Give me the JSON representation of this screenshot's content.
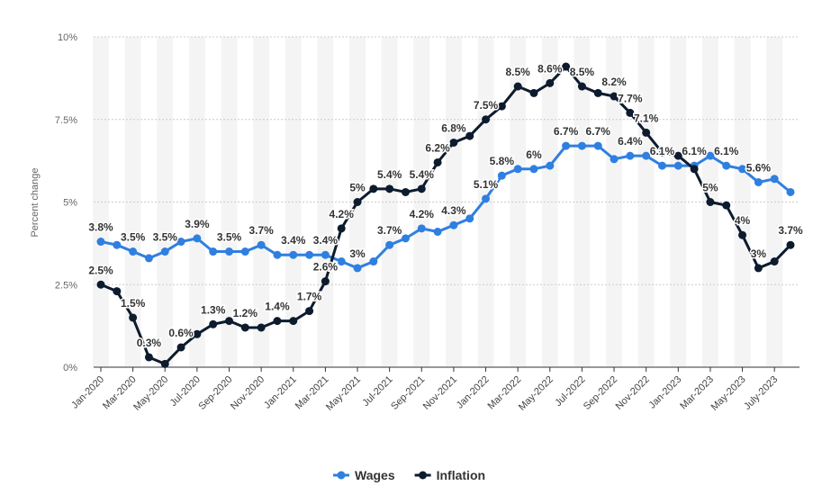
{
  "chart_data": {
    "type": "line",
    "y_label": "Percent change",
    "categories": [
      "Jan-2020",
      null,
      "Mar-2020",
      null,
      "May-2020",
      null,
      "Jul-2020",
      null,
      "Sep-2020",
      null,
      "Nov-2020",
      null,
      "Jan-2021",
      null,
      "Mar-2021",
      null,
      "May-2021",
      null,
      "Jul-2021",
      null,
      "Sep-2021",
      null,
      "Nov-2021",
      null,
      "Jan-2022",
      null,
      "Mar-2022",
      null,
      "May-2022",
      null,
      "Jul-2022",
      null,
      "Sep-2022",
      null,
      "Nov-2022",
      null,
      "Jan-2023",
      null,
      "Mar-2023",
      null,
      "May-2023",
      null,
      "July-2023",
      null
    ],
    "series": [
      {
        "name": "Wages",
        "color": "#2f7fe0",
        "values": [
          3.8,
          3.7,
          3.5,
          3.3,
          3.5,
          3.8,
          3.9,
          3.5,
          3.5,
          3.5,
          3.7,
          3.4,
          3.4,
          3.4,
          3.4,
          3.2,
          3.0,
          3.2,
          3.7,
          3.9,
          4.2,
          4.1,
          4.3,
          4.5,
          5.1,
          5.8,
          6.0,
          6.0,
          6.1,
          6.7,
          6.7,
          6.7,
          6.3,
          6.4,
          6.4,
          6.1,
          6.1,
          6.1,
          6.4,
          6.1,
          6.0,
          5.6,
          5.7,
          5.3
        ],
        "value_labels": [
          "3.8%",
          null,
          "3.5%",
          null,
          "3.5%",
          null,
          "3.9%",
          null,
          "3.5%",
          null,
          "3.7%",
          null,
          "3.4%",
          null,
          "3.4%",
          null,
          "3%",
          null,
          "3.7%",
          null,
          "4.2%",
          null,
          "4.3%",
          null,
          "5.1%",
          "5.8%",
          null,
          "6%",
          null,
          "6.7%",
          null,
          "6.7%",
          null,
          "6.4%",
          null,
          "6.1%",
          null,
          "6.1%",
          null,
          "6.1%",
          null,
          "5.6%",
          null,
          null
        ]
      },
      {
        "name": "Inflation",
        "color": "#0d1b2e",
        "values": [
          2.5,
          2.3,
          1.5,
          0.3,
          0.1,
          0.6,
          1.0,
          1.3,
          1.4,
          1.2,
          1.2,
          1.4,
          1.4,
          1.7,
          2.6,
          4.2,
          5.0,
          5.4,
          5.4,
          5.3,
          5.4,
          6.2,
          6.8,
          7.0,
          7.5,
          7.9,
          8.5,
          8.3,
          8.6,
          9.1,
          8.5,
          8.3,
          8.2,
          7.7,
          7.1,
          6.5,
          6.4,
          6.0,
          5.0,
          4.9,
          4.0,
          3.0,
          3.2,
          3.7
        ],
        "value_labels": [
          "2.5%",
          null,
          "1.5%",
          "0.3%",
          null,
          "0.6%",
          null,
          "1.3%",
          null,
          "1.2%",
          null,
          "1.4%",
          null,
          "1.7%",
          "2.6%",
          "4.2%",
          "5%",
          null,
          "5.4%",
          null,
          "5.4%",
          "6.2%",
          "6.8%",
          null,
          "7.5%",
          null,
          "8.5%",
          null,
          "8.6%",
          null,
          "8.5%",
          null,
          "8.2%",
          "7.7%",
          "7.1%",
          null,
          null,
          null,
          "5%",
          null,
          "4%",
          "3%",
          null,
          "3.7%"
        ]
      }
    ],
    "ylim": [
      0,
      10
    ],
    "yticks": [
      {
        "value": 0,
        "label": "0%"
      },
      {
        "value": 2.5,
        "label": "2.5%"
      },
      {
        "value": 5,
        "label": "5%"
      },
      {
        "value": 7.5,
        "label": "7.5%"
      },
      {
        "value": 10,
        "label": "10%"
      }
    ],
    "grid": true,
    "legend": "bottom"
  }
}
